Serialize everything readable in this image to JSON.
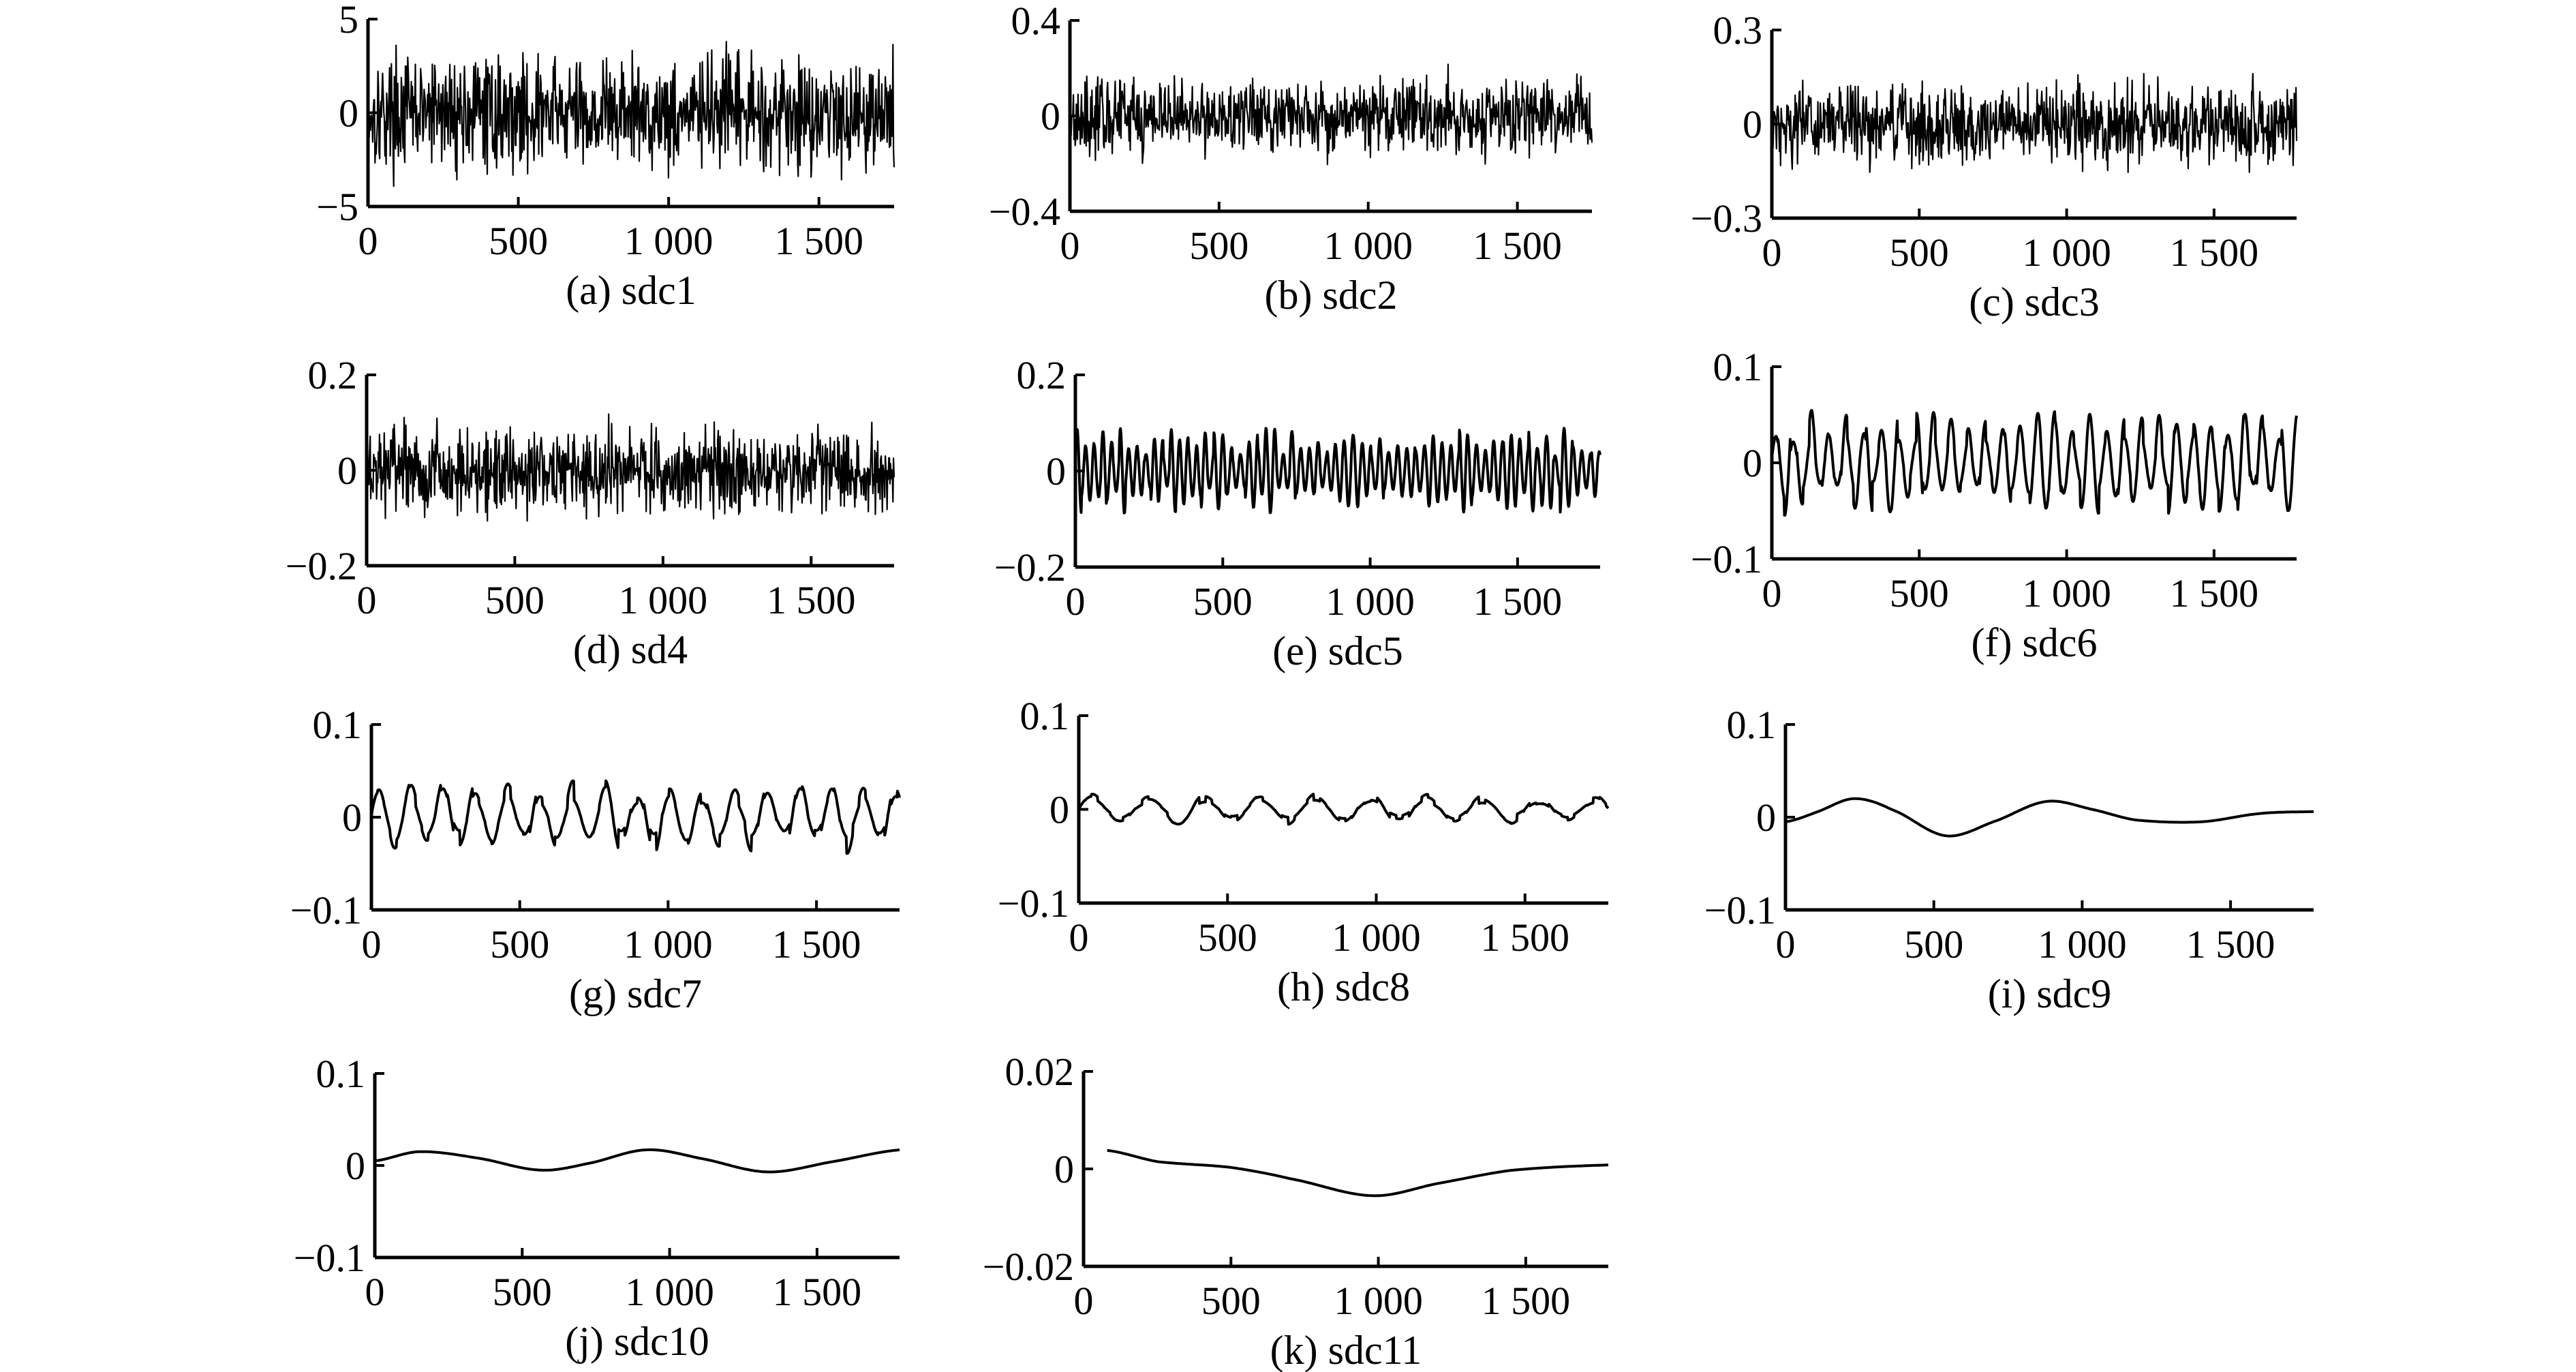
{
  "figure": {
    "background": "#ffffff",
    "line_color": "#000000"
  },
  "chart_data": [
    {
      "type": "line",
      "caption": "(a) sdc1",
      "xlim": [
        0,
        1750
      ],
      "xticks": [
        0,
        500,
        1000,
        1500
      ],
      "xtick_labels": [
        "0",
        "500",
        "1 000",
        "1 500"
      ],
      "ylim": [
        -5,
        5
      ],
      "yticks": [
        -5,
        0,
        5
      ],
      "ytick_labels": [
        "−5",
        "0",
        "5"
      ],
      "grid": false,
      "signal": {
        "kind": "noise",
        "amplitude": 4.3
      }
    },
    {
      "type": "line",
      "caption": "(b) sdc2",
      "xlim": [
        0,
        1750
      ],
      "xticks": [
        0,
        500,
        1000,
        1500
      ],
      "xtick_labels": [
        "0",
        "500",
        "1 000",
        "1 500"
      ],
      "ylim": [
        -0.4,
        0.4
      ],
      "yticks": [
        -0.4,
        0,
        0.4
      ],
      "ytick_labels": [
        "−0.4",
        "0",
        "0.4"
      ],
      "grid": false,
      "signal": {
        "kind": "noise",
        "amplitude": 0.23
      }
    },
    {
      "type": "line",
      "caption": "(c) sdc3",
      "xlim": [
        0,
        1780
      ],
      "xticks": [
        0,
        500,
        1000,
        1500
      ],
      "xtick_labels": [
        "0",
        "500",
        "1 000",
        "1 500"
      ],
      "ylim": [
        -0.3,
        0.3
      ],
      "yticks": [
        -0.3,
        0,
        0.3
      ],
      "ytick_labels": [
        "−0.3",
        "0",
        "0.3"
      ],
      "grid": false,
      "signal": {
        "kind": "noise",
        "amplitude": 0.18
      }
    },
    {
      "type": "line",
      "caption": "(d) sd4",
      "xlim": [
        0,
        1780
      ],
      "xticks": [
        0,
        500,
        1000,
        1500
      ],
      "xtick_labels": [
        "0",
        "500",
        "1 000",
        "1 500"
      ],
      "ylim": [
        -0.2,
        0.2
      ],
      "yticks": [
        -0.2,
        0,
        0.2
      ],
      "ytick_labels": [
        "−0.2",
        "0",
        "0.2"
      ],
      "grid": false,
      "signal": {
        "kind": "noise",
        "amplitude": 0.13
      }
    },
    {
      "type": "line",
      "caption": "(e) sdc5",
      "xlim": [
        0,
        1780
      ],
      "xticks": [
        0,
        500,
        1000,
        1500
      ],
      "xtick_labels": [
        "0",
        "500",
        "1 000",
        "1 500"
      ],
      "ylim": [
        -0.2,
        0.2
      ],
      "yticks": [
        -0.2,
        0,
        0.2
      ],
      "ytick_labels": [
        "−0.2",
        "0",
        "0.2"
      ],
      "grid": false,
      "signal": {
        "kind": "oscillation",
        "amplitude": 0.09,
        "period": 30
      }
    },
    {
      "type": "line",
      "caption": "(f) sdc6",
      "xlim": [
        0,
        1780
      ],
      "xticks": [
        0,
        500,
        1000,
        1500
      ],
      "xtick_labels": [
        "0",
        "500",
        "1 000",
        "1 500"
      ],
      "ylim": [
        -0.1,
        0.1
      ],
      "yticks": [
        -0.1,
        0,
        0.1
      ],
      "ytick_labels": [
        "−0.1",
        "0",
        "0.1"
      ],
      "grid": false,
      "signal": {
        "kind": "oscillation",
        "amplitude": 0.055,
        "period": 60
      }
    },
    {
      "type": "line",
      "caption": "(g) sdc7",
      "xlim": [
        0,
        1780
      ],
      "xticks": [
        0,
        500,
        1000,
        1500
      ],
      "xtick_labels": [
        "0",
        "500",
        "1 000",
        "1 500"
      ],
      "ylim": [
        -0.1,
        0.1
      ],
      "yticks": [
        -0.1,
        0,
        0.1
      ],
      "ytick_labels": [
        "−0.1",
        "0",
        "0.1"
      ],
      "grid": false,
      "signal": {
        "kind": "oscillation",
        "amplitude": 0.04,
        "period": 110
      }
    },
    {
      "type": "line",
      "caption": "(h) sdc8",
      "xlim": [
        0,
        1780
      ],
      "xticks": [
        0,
        500,
        1000,
        1500
      ],
      "xtick_labels": [
        "0",
        "500",
        "1 000",
        "1 500"
      ],
      "ylim": [
        -0.1,
        0.1
      ],
      "yticks": [
        -0.1,
        0,
        0.1
      ],
      "ytick_labels": [
        "−0.1",
        "0",
        "0.1"
      ],
      "grid": false,
      "signal": {
        "kind": "oscillation",
        "amplitude": 0.017,
        "period": 190
      }
    },
    {
      "type": "line",
      "caption": "(i) sdc9",
      "xlim": [
        0,
        1780
      ],
      "xticks": [
        0,
        500,
        1000,
        1500
      ],
      "xtick_labels": [
        "0",
        "500",
        "1 000",
        "1 500"
      ],
      "ylim": [
        -0.1,
        0.1
      ],
      "yticks": [
        -0.1,
        0,
        0.1
      ],
      "ytick_labels": [
        "−0.1",
        "0",
        "0.1"
      ],
      "grid": false,
      "signal": {
        "kind": "smooth",
        "points": [
          [
            0,
            -0.005
          ],
          [
            100,
            0.005
          ],
          [
            230,
            0.02
          ],
          [
            360,
            0.008
          ],
          [
            540,
            -0.02
          ],
          [
            700,
            -0.005
          ],
          [
            880,
            0.017
          ],
          [
            1040,
            0.008
          ],
          [
            1180,
            -0.003
          ],
          [
            1400,
            -0.005
          ],
          [
            1600,
            0.004
          ],
          [
            1780,
            0.006
          ]
        ]
      }
    },
    {
      "type": "line",
      "caption": "(j) sdc10",
      "xlim": [
        0,
        1780
      ],
      "xticks": [
        0,
        500,
        1000,
        1500
      ],
      "xtick_labels": [
        "0",
        "500",
        "1 000",
        "1 500"
      ],
      "ylim": [
        -0.1,
        0.1
      ],
      "yticks": [
        -0.1,
        0,
        0.1
      ],
      "ytick_labels": [
        "−0.1",
        "0",
        "0.1"
      ],
      "grid": false,
      "signal": {
        "kind": "smooth",
        "points": [
          [
            0,
            0.005
          ],
          [
            150,
            0.015
          ],
          [
            350,
            0.008
          ],
          [
            560,
            -0.005
          ],
          [
            720,
            0.002
          ],
          [
            920,
            0.017
          ],
          [
            1100,
            0.008
          ],
          [
            1330,
            -0.007
          ],
          [
            1550,
            0.004
          ],
          [
            1780,
            0.017
          ]
        ]
      }
    },
    {
      "type": "line",
      "caption": "(k) sdc11",
      "xlim": [
        0,
        1780
      ],
      "xticks": [
        0,
        500,
        1000,
        1500
      ],
      "xtick_labels": [
        "0",
        "500",
        "1 000",
        "1 500"
      ],
      "ylim": [
        -0.02,
        0.02
      ],
      "yticks": [
        -0.02,
        0,
        0.02
      ],
      "ytick_labels": [
        "−0.02",
        "0",
        "0.02"
      ],
      "grid": false,
      "signal": {
        "kind": "smooth",
        "points": [
          [
            80,
            0.0038
          ],
          [
            250,
            0.0015
          ],
          [
            500,
            0.0003
          ],
          [
            700,
            -0.002
          ],
          [
            980,
            -0.0055
          ],
          [
            1200,
            -0.003
          ],
          [
            1450,
            -0.0003
          ],
          [
            1780,
            0.0008
          ]
        ]
      }
    }
  ]
}
